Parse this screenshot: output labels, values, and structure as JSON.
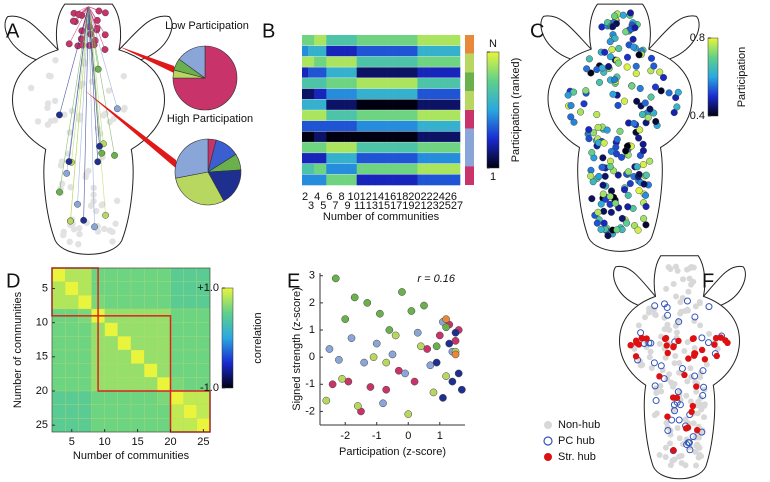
{
  "chart_data": [
    {
      "type": "pie",
      "label": "A",
      "pies": [
        {
          "title": "Low Participation",
          "values": [
            75,
            4,
            6,
            15
          ],
          "colors": [
            "#c8336a",
            "#b7d760",
            "#6ab04c",
            "#8aa5d8"
          ]
        },
        {
          "title": "High Participation",
          "values": [
            4,
            12,
            8,
            18,
            30,
            28
          ],
          "colors": [
            "#c8336a",
            "#3b5fd0",
            "#6ab04c",
            "#1f2f90",
            "#b7d760",
            "#8aa5d8"
          ]
        }
      ]
    },
    {
      "type": "heatmap",
      "label": "B",
      "xlabel": "Number of communities",
      "categories": [
        2,
        3,
        4,
        5,
        6,
        7,
        8,
        9,
        10,
        11,
        12,
        13,
        14,
        15,
        16,
        17,
        18,
        19,
        20,
        21,
        22,
        23,
        24,
        25,
        26,
        27
      ],
      "values": [
        [
          8,
          8,
          9,
          9,
          7,
          7,
          7,
          7,
          7,
          8,
          8,
          8,
          8,
          8,
          8,
          8,
          8,
          8,
          8,
          9,
          9,
          9,
          9,
          9,
          9,
          9
        ],
        [
          5,
          6,
          6,
          6,
          3,
          3,
          3,
          3,
          3,
          4,
          4,
          4,
          4,
          4,
          4,
          4,
          4,
          4,
          4,
          6,
          6,
          6,
          6,
          6,
          6,
          6
        ],
        [
          9,
          9,
          8,
          8,
          9,
          9,
          9,
          9,
          9,
          7,
          7,
          7,
          7,
          7,
          7,
          7,
          7,
          7,
          7,
          8,
          8,
          8,
          8,
          8,
          8,
          8
        ],
        [
          3,
          4,
          4,
          4,
          6,
          6,
          6,
          6,
          6,
          2,
          2,
          2,
          2,
          2,
          2,
          2,
          2,
          2,
          2,
          3,
          3,
          3,
          3,
          3,
          3,
          3
        ],
        [
          7,
          7,
          7,
          7,
          8,
          8,
          8,
          8,
          8,
          9,
          9,
          9,
          9,
          9,
          9,
          9,
          9,
          9,
          9,
          7,
          7,
          7,
          7,
          7,
          7,
          7
        ],
        [
          2,
          2,
          3,
          3,
          5,
          5,
          5,
          5,
          5,
          6,
          6,
          6,
          6,
          6,
          6,
          6,
          6,
          6,
          6,
          4,
          4,
          4,
          4,
          4,
          4,
          4
        ],
        [
          6,
          6,
          6,
          6,
          2,
          2,
          2,
          2,
          2,
          1,
          1,
          1,
          1,
          1,
          1,
          1,
          1,
          1,
          1,
          2,
          2,
          2,
          2,
          2,
          2,
          2
        ],
        [
          9,
          9,
          9,
          9,
          7,
          7,
          7,
          7,
          7,
          8,
          8,
          8,
          8,
          8,
          8,
          8,
          8,
          8,
          8,
          9,
          9,
          9,
          9,
          9,
          9,
          9
        ],
        [
          4,
          4,
          4,
          4,
          4,
          4,
          4,
          4,
          4,
          5,
          5,
          5,
          5,
          5,
          5,
          5,
          5,
          5,
          5,
          6,
          6,
          6,
          6,
          6,
          6,
          6
        ],
        [
          1,
          1,
          2,
          2,
          1,
          1,
          1,
          1,
          1,
          1,
          1,
          1,
          1,
          1,
          1,
          1,
          1,
          1,
          1,
          2,
          2,
          2,
          2,
          2,
          2,
          2
        ],
        [
          8,
          8,
          8,
          8,
          9,
          9,
          9,
          9,
          9,
          7,
          7,
          7,
          7,
          7,
          7,
          7,
          7,
          7,
          7,
          8,
          8,
          8,
          8,
          8,
          8,
          8
        ],
        [
          3,
          3,
          3,
          3,
          6,
          6,
          6,
          6,
          6,
          4,
          4,
          4,
          4,
          4,
          4,
          4,
          4,
          4,
          4,
          5,
          5,
          5,
          5,
          5,
          5,
          5
        ],
        [
          7,
          7,
          8,
          8,
          5,
          5,
          5,
          5,
          5,
          8,
          8,
          8,
          8,
          8,
          8,
          8,
          8,
          8,
          8,
          9,
          9,
          9,
          9,
          9,
          9,
          9
        ],
        [
          5,
          5,
          5,
          5,
          8,
          8,
          8,
          8,
          8,
          3,
          3,
          3,
          3,
          3,
          3,
          3,
          3,
          3,
          3,
          4,
          4,
          4,
          4,
          4,
          4,
          4
        ]
      ],
      "clim": [
        1,
        10
      ],
      "colorbar": {
        "label": "Participation (ranked)",
        "ticks": [
          {
            "value": 10,
            "label": "N"
          },
          1
        ]
      },
      "module_colors": [
        "#e8883a",
        "#b7d760",
        "#6ab04c",
        "#b7d760",
        "#c8336a",
        "#8aa5d8",
        "#8aa5d8",
        "#c8336a"
      ],
      "colormap": [
        "#000010",
        "#1a2ad0",
        "#2aa8e0",
        "#5fd08a",
        "#e8f53c"
      ]
    },
    {
      "type": "map",
      "label": "C",
      "clim": [
        0.4,
        0.8
      ],
      "colorbar": {
        "label": "Participation",
        "ticks": [
          0.8,
          0.4
        ]
      },
      "colormap": [
        "#000010",
        "#1a2ad0",
        "#2aa8e0",
        "#5fd08a",
        "#e8f53c"
      ]
    },
    {
      "type": "heatmap",
      "label": "D",
      "xlabel": "Number of communities",
      "ylabel": "Number of communities",
      "xlim": [
        2,
        26
      ],
      "ylim": [
        2,
        26
      ],
      "xticks": [
        5,
        10,
        15,
        20,
        25
      ],
      "yticks": [
        5,
        10,
        15,
        20,
        25
      ],
      "values": [
        [
          1,
          0.8,
          0.8,
          0.55,
          0.55,
          0.55,
          0.55,
          0.55,
          0.55,
          0.45,
          0.45,
          0.45
        ],
        [
          0.8,
          1,
          0.8,
          0.55,
          0.55,
          0.55,
          0.55,
          0.55,
          0.55,
          0.45,
          0.45,
          0.45
        ],
        [
          0.8,
          0.8,
          1,
          0.6,
          0.55,
          0.55,
          0.55,
          0.55,
          0.55,
          0.45,
          0.45,
          0.45
        ],
        [
          0.55,
          0.55,
          0.6,
          1,
          0.7,
          0.7,
          0.7,
          0.7,
          0.7,
          0.55,
          0.55,
          0.55
        ],
        [
          0.55,
          0.55,
          0.55,
          0.7,
          1,
          0.7,
          0.7,
          0.7,
          0.7,
          0.55,
          0.55,
          0.55
        ],
        [
          0.55,
          0.55,
          0.55,
          0.7,
          0.7,
          1,
          0.7,
          0.7,
          0.7,
          0.55,
          0.55,
          0.55
        ],
        [
          0.55,
          0.55,
          0.55,
          0.7,
          0.7,
          0.7,
          1,
          0.7,
          0.7,
          0.55,
          0.55,
          0.55
        ],
        [
          0.55,
          0.55,
          0.55,
          0.7,
          0.7,
          0.7,
          0.7,
          1,
          0.7,
          0.55,
          0.55,
          0.55
        ],
        [
          0.55,
          0.55,
          0.55,
          0.7,
          0.7,
          0.7,
          0.7,
          0.7,
          1,
          0.6,
          0.55,
          0.55
        ],
        [
          0.45,
          0.45,
          0.45,
          0.55,
          0.55,
          0.55,
          0.55,
          0.55,
          0.6,
          1,
          0.85,
          0.85
        ],
        [
          0.45,
          0.45,
          0.45,
          0.55,
          0.55,
          0.55,
          0.55,
          0.55,
          0.55,
          0.85,
          1,
          0.85
        ],
        [
          0.45,
          0.45,
          0.45,
          0.55,
          0.55,
          0.55,
          0.55,
          0.55,
          0.55,
          0.85,
          0.85,
          1
        ]
      ],
      "clim": [
        -1,
        1
      ],
      "colorbar": {
        "label": "correlation",
        "ticks": [
          {
            "value": 1,
            "label": "+1.0"
          },
          {
            "value": -1,
            "label": "-1.0"
          }
        ]
      },
      "blocks": [
        [
          2,
          9
        ],
        [
          9,
          20
        ],
        [
          20,
          26
        ]
      ],
      "block_color": "#dd2222",
      "colormap": [
        "#000010",
        "#1a2ad0",
        "#2aa8e0",
        "#5fd08a",
        "#e8f53c"
      ]
    },
    {
      "type": "scatter",
      "label": "E",
      "xlabel": "Participation (z-score)",
      "ylabel": "Signed strength (z-score)",
      "annotation": "r = 0.16",
      "xlim": [
        -2.8,
        1.8
      ],
      "ylim": [
        -2.5,
        3.1
      ],
      "xticks": [
        -2,
        -1,
        0,
        1
      ],
      "yticks": [
        -2,
        -1,
        0,
        1,
        2,
        3
      ],
      "series": [
        {
          "color": "#c8336a",
          "x": [
            -2.4,
            -1.9,
            -1.5,
            -1.2,
            -0.7,
            -0.3,
            0.2,
            0.6,
            1.0,
            1.3,
            1.5,
            1.6
          ],
          "values": [
            -1.0,
            -0.9,
            -2.0,
            -1.1,
            -1.2,
            -0.5,
            -0.9,
            0.3,
            0.8,
            1.2,
            0.6,
            1.0
          ]
        },
        {
          "color": "#8aa5d8",
          "x": [
            -2.5,
            -2.2,
            -1.8,
            -1.4,
            -1.0,
            -0.8,
            -0.5,
            -0.1,
            0.3,
            0.7,
            1.1,
            1.4
          ],
          "values": [
            0.3,
            -0.1,
            0.7,
            -0.2,
            0.5,
            -1.7,
            0.1,
            -0.6,
            0.9,
            -0.3,
            1.3,
            0.2
          ]
        },
        {
          "color": "#6ab04c",
          "x": [
            -2.3,
            -2.0,
            -1.7,
            -1.3,
            -0.9,
            -0.6,
            -0.2,
            0.1,
            0.5,
            0.9,
            1.2
          ],
          "values": [
            2.9,
            1.4,
            2.2,
            2.0,
            1.6,
            1.0,
            2.4,
            1.7,
            1.9,
            0.4,
            1.1
          ]
        },
        {
          "color": "#b7d760",
          "x": [
            -2.6,
            -2.1,
            -1.6,
            -1.1,
            -0.7,
            -0.4,
            0.0,
            0.4,
            0.8,
            1.2,
            1.5
          ],
          "values": [
            -1.6,
            -0.8,
            -1.8,
            0.0,
            -0.2,
            0.8,
            -2.1,
            0.4,
            -1.3,
            -0.7,
            0.2
          ]
        },
        {
          "color": "#1f2f90",
          "x": [
            0.9,
            1.1,
            1.3,
            1.4,
            1.5,
            1.6,
            1.7
          ],
          "values": [
            -0.2,
            -1.5,
            0.5,
            -0.9,
            0.9,
            -0.6,
            -1.2
          ]
        },
        {
          "color": "#e8883a",
          "x": [
            1.2,
            1.5
          ],
          "values": [
            1.4,
            0.1
          ]
        }
      ]
    },
    {
      "type": "map",
      "label": "F",
      "legend": [
        {
          "name": "Non-hub",
          "color": "#d8d8d8",
          "hollow": false
        },
        {
          "name": "PC hub",
          "color": "#3355bb",
          "hollow": true
        },
        {
          "name": "Str. hub",
          "color": "#dd1111",
          "hollow": false
        }
      ]
    }
  ]
}
